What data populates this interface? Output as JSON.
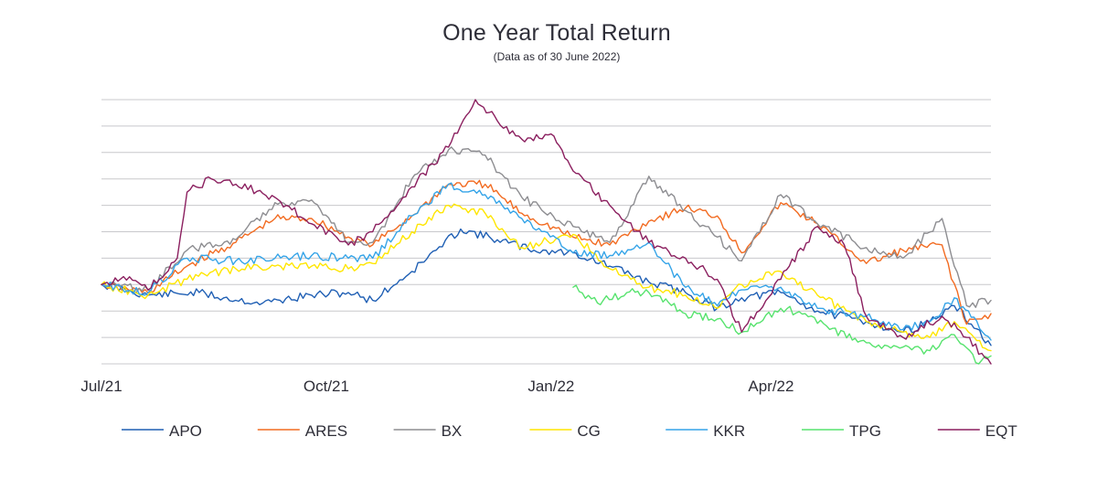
{
  "chart_data": {
    "type": "line",
    "title": "One Year Total Return",
    "subtitle": "(Data as of 30 June 2022)",
    "xlabel": "",
    "ylabel": "",
    "x_ticks": [
      {
        "label": "Jul/21",
        "date": "2021-07-01"
      },
      {
        "label": "Oct/21",
        "date": "2021-10-01"
      },
      {
        "label": "Jan/22",
        "date": "2022-01-01"
      },
      {
        "label": "Apr/22",
        "date": "2022-04-01"
      }
    ],
    "x_range": [
      "2021-07-01",
      "2022-06-30"
    ],
    "y_gridlines": 11,
    "y_range": [
      -30,
      70
    ],
    "y_tick_labels_shown": false,
    "grid": "horizontal",
    "legend_position": "bottom",
    "series": [
      {
        "name": "APO",
        "color": "#1f5fb4",
        "points": [
          [
            "2021-07-01",
            0
          ],
          [
            "2021-07-20",
            -4
          ],
          [
            "2021-08-10",
            -3
          ],
          [
            "2021-08-20",
            -5
          ],
          [
            "2021-09-05",
            -7
          ],
          [
            "2021-09-25",
            -4
          ],
          [
            "2021-10-10",
            -3
          ],
          [
            "2021-10-20",
            -6
          ],
          [
            "2021-11-05",
            5
          ],
          [
            "2021-11-15",
            13
          ],
          [
            "2021-11-25",
            21
          ],
          [
            "2021-12-10",
            17
          ],
          [
            "2021-12-25",
            13
          ],
          [
            "2022-01-10",
            12
          ],
          [
            "2022-01-25",
            7
          ],
          [
            "2022-02-10",
            1
          ],
          [
            "2022-02-25",
            -3
          ],
          [
            "2022-03-10",
            -9
          ],
          [
            "2022-03-20",
            -5
          ],
          [
            "2022-04-05",
            -3
          ],
          [
            "2022-04-20",
            -10
          ],
          [
            "2022-05-10",
            -14
          ],
          [
            "2022-05-25",
            -18
          ],
          [
            "2022-06-05",
            -14
          ],
          [
            "2022-06-15",
            -8
          ],
          [
            "2022-06-30",
            -23
          ]
        ]
      },
      {
        "name": "ARES",
        "color": "#f26b21",
        "points": [
          [
            "2021-07-01",
            0
          ],
          [
            "2021-07-20",
            -3
          ],
          [
            "2021-08-05",
            7
          ],
          [
            "2021-08-25",
            16
          ],
          [
            "2021-09-10",
            25
          ],
          [
            "2021-09-25",
            25
          ],
          [
            "2021-10-10",
            18
          ],
          [
            "2021-10-20",
            15
          ],
          [
            "2021-11-05",
            26
          ],
          [
            "2021-11-20",
            38
          ],
          [
            "2021-12-05",
            38
          ],
          [
            "2021-12-20",
            27
          ],
          [
            "2022-01-10",
            18
          ],
          [
            "2022-01-25",
            15
          ],
          [
            "2022-02-10",
            24
          ],
          [
            "2022-02-25",
            29
          ],
          [
            "2022-03-10",
            26
          ],
          [
            "2022-03-20",
            12
          ],
          [
            "2022-04-05",
            31
          ],
          [
            "2022-04-20",
            23
          ],
          [
            "2022-05-10",
            8
          ],
          [
            "2022-05-25",
            13
          ],
          [
            "2022-06-10",
            15
          ],
          [
            "2022-06-20",
            -15
          ],
          [
            "2022-06-30",
            -11
          ]
        ]
      },
      {
        "name": "BX",
        "color": "#8d8d91",
        "points": [
          [
            "2021-07-01",
            0
          ],
          [
            "2021-07-20",
            -2
          ],
          [
            "2021-08-05",
            13
          ],
          [
            "2021-08-25",
            17
          ],
          [
            "2021-09-10",
            31
          ],
          [
            "2021-09-25",
            32
          ],
          [
            "2021-10-10",
            16
          ],
          [
            "2021-10-20",
            16
          ],
          [
            "2021-11-05",
            40
          ],
          [
            "2021-11-20",
            51
          ],
          [
            "2021-12-05",
            49
          ],
          [
            "2021-12-20",
            33
          ],
          [
            "2022-01-10",
            22
          ],
          [
            "2022-01-25",
            16
          ],
          [
            "2022-02-10",
            41
          ],
          [
            "2022-02-25",
            28
          ],
          [
            "2022-03-10",
            18
          ],
          [
            "2022-03-20",
            9
          ],
          [
            "2022-04-05",
            34
          ],
          [
            "2022-04-20",
            23
          ],
          [
            "2022-05-10",
            14
          ],
          [
            "2022-05-25",
            10
          ],
          [
            "2022-06-10",
            25
          ],
          [
            "2022-06-20",
            -8
          ],
          [
            "2022-06-30",
            -6
          ]
        ]
      },
      {
        "name": "CG",
        "color": "#ffe600",
        "points": [
          [
            "2021-07-01",
            0
          ],
          [
            "2021-07-20",
            -4
          ],
          [
            "2021-08-05",
            2
          ],
          [
            "2021-08-25",
            6
          ],
          [
            "2021-09-10",
            7
          ],
          [
            "2021-09-25",
            7
          ],
          [
            "2021-10-10",
            6
          ],
          [
            "2021-10-20",
            8
          ],
          [
            "2021-11-05",
            20
          ],
          [
            "2021-11-20",
            30
          ],
          [
            "2021-12-05",
            27
          ],
          [
            "2021-12-20",
            14
          ],
          [
            "2022-01-10",
            19
          ],
          [
            "2022-01-25",
            6
          ],
          [
            "2022-02-10",
            -1
          ],
          [
            "2022-02-25",
            -4
          ],
          [
            "2022-03-10",
            -9
          ],
          [
            "2022-03-20",
            0
          ],
          [
            "2022-04-05",
            5
          ],
          [
            "2022-04-20",
            -4
          ],
          [
            "2022-05-10",
            -14
          ],
          [
            "2022-05-25",
            -18
          ],
          [
            "2022-06-05",
            -20
          ],
          [
            "2022-06-15",
            -14
          ],
          [
            "2022-06-30",
            -25
          ]
        ]
      },
      {
        "name": "KKR",
        "color": "#35a4e8",
        "points": [
          [
            "2021-07-01",
            0
          ],
          [
            "2021-07-20",
            -3
          ],
          [
            "2021-08-05",
            10
          ],
          [
            "2021-08-25",
            9
          ],
          [
            "2021-09-10",
            10
          ],
          [
            "2021-09-25",
            11
          ],
          [
            "2021-10-10",
            10
          ],
          [
            "2021-10-20",
            10
          ],
          [
            "2021-11-05",
            26
          ],
          [
            "2021-11-20",
            38
          ],
          [
            "2021-12-05",
            34
          ],
          [
            "2021-12-20",
            25
          ],
          [
            "2022-01-10",
            12
          ],
          [
            "2022-01-25",
            11
          ],
          [
            "2022-02-10",
            16
          ],
          [
            "2022-02-25",
            -1
          ],
          [
            "2022-03-10",
            -8
          ],
          [
            "2022-03-20",
            -2
          ],
          [
            "2022-04-05",
            -1
          ],
          [
            "2022-04-20",
            -9
          ],
          [
            "2022-05-10",
            -12
          ],
          [
            "2022-05-25",
            -17
          ],
          [
            "2022-06-05",
            -14
          ],
          [
            "2022-06-15",
            -5
          ],
          [
            "2022-06-30",
            -21
          ]
        ]
      },
      {
        "name": "TPG",
        "color": "#57e36e",
        "points": [
          [
            "2022-01-10",
            -1
          ],
          [
            "2022-01-20",
            -7
          ],
          [
            "2022-02-01",
            -3
          ],
          [
            "2022-02-10",
            -3
          ],
          [
            "2022-02-25",
            -11
          ],
          [
            "2022-03-10",
            -13
          ],
          [
            "2022-03-20",
            -18
          ],
          [
            "2022-04-05",
            -9
          ],
          [
            "2022-04-15",
            -11
          ],
          [
            "2022-04-25",
            -17
          ],
          [
            "2022-05-10",
            -22
          ],
          [
            "2022-05-20",
            -24
          ],
          [
            "2022-06-05",
            -25
          ],
          [
            "2022-06-15",
            -19
          ],
          [
            "2022-06-25",
            -30
          ],
          [
            "2022-06-30",
            -27
          ]
        ]
      },
      {
        "name": "EQT",
        "color": "#8b1f5f",
        "points": [
          [
            "2021-07-01",
            0
          ],
          [
            "2021-07-10",
            3
          ],
          [
            "2021-07-20",
            -2
          ],
          [
            "2021-08-01",
            10
          ],
          [
            "2021-08-05",
            35
          ],
          [
            "2021-08-15",
            40
          ],
          [
            "2021-08-25",
            38
          ],
          [
            "2021-09-10",
            33
          ],
          [
            "2021-09-25",
            23
          ],
          [
            "2021-10-10",
            15
          ],
          [
            "2021-10-20",
            20
          ],
          [
            "2021-11-05",
            37
          ],
          [
            "2021-11-20",
            52
          ],
          [
            "2021-12-01",
            70
          ],
          [
            "2021-12-10",
            62
          ],
          [
            "2021-12-20",
            55
          ],
          [
            "2022-01-01",
            57
          ],
          [
            "2022-01-10",
            43
          ],
          [
            "2022-01-25",
            30
          ],
          [
            "2022-02-10",
            16
          ],
          [
            "2022-02-25",
            10
          ],
          [
            "2022-03-10",
            2
          ],
          [
            "2022-03-20",
            -18
          ],
          [
            "2022-04-05",
            2
          ],
          [
            "2022-04-20",
            22
          ],
          [
            "2022-05-01",
            15
          ],
          [
            "2022-05-10",
            -12
          ],
          [
            "2022-05-25",
            -20
          ],
          [
            "2022-06-10",
            -12
          ],
          [
            "2022-06-20",
            -20
          ],
          [
            "2022-06-30",
            -30
          ]
        ]
      }
    ]
  }
}
